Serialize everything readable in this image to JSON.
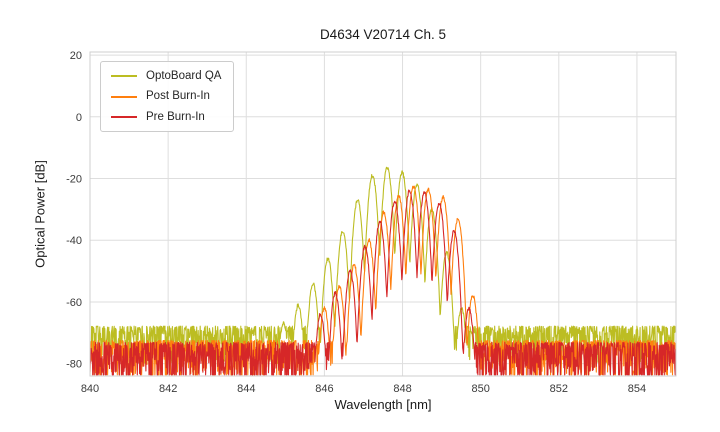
{
  "figure": {
    "title": "D4634 V20714 Ch. 5"
  },
  "chart_data": {
    "type": "line",
    "title": "D4634 V20714 Ch. 5",
    "xlabel": "Wavelength [nm]",
    "ylabel": "Optical Power [dB]",
    "xlim": [
      840,
      855
    ],
    "ylim": [
      -84,
      21
    ],
    "xticks": [
      840,
      842,
      844,
      846,
      848,
      850,
      852,
      854
    ],
    "yticks": [
      20,
      0,
      -20,
      -40,
      -60,
      -80
    ],
    "grid": true,
    "grid_color": "#dedede",
    "spine_color": "#cfcfcf",
    "legend_position": "upper-left",
    "mode_model": {
      "sample_step_nm": 0.01,
      "mode_half_spacing_nm": 0.19,
      "notch_depth_db": 28,
      "envelope_jitter_db": 1.2
    },
    "series": [
      {
        "name": "OptoBoard QA",
        "color": "#bcbd22",
        "seed": 101,
        "noise_floor_db": -71,
        "noise_spread_db": 9,
        "peak_wavelength_nm": 847.61,
        "peak_power_db": -16.5,
        "modes": [
          [
            844.95,
            -67
          ],
          [
            845.33,
            -61
          ],
          [
            845.71,
            -54
          ],
          [
            846.09,
            -46
          ],
          [
            846.47,
            -37
          ],
          [
            846.85,
            -27
          ],
          [
            847.23,
            -19
          ],
          [
            847.61,
            -16.5
          ],
          [
            847.99,
            -18
          ],
          [
            848.37,
            -22
          ],
          [
            848.75,
            -30
          ],
          [
            849.13,
            -44
          ],
          [
            849.51,
            -62
          ]
        ]
      },
      {
        "name": "Post Burn-In",
        "color": "#ff7f0e",
        "seed": 202,
        "noise_floor_db": -76,
        "noise_spread_db": 10,
        "peak_wavelength_nm": 848.28,
        "peak_power_db": -22.5,
        "modes": [
          [
            846.0,
            -62
          ],
          [
            846.38,
            -55
          ],
          [
            846.76,
            -48
          ],
          [
            847.14,
            -40
          ],
          [
            847.52,
            -31
          ],
          [
            847.9,
            -25.5
          ],
          [
            848.28,
            -22.5
          ],
          [
            848.66,
            -23.5
          ],
          [
            849.04,
            -26
          ],
          [
            849.42,
            -33
          ],
          [
            849.8,
            -58
          ]
        ]
      },
      {
        "name": "Pre Burn-In",
        "color": "#d62728",
        "seed": 303,
        "noise_floor_db": -77,
        "noise_spread_db": 11,
        "peak_wavelength_nm": 848.18,
        "peak_power_db": -24,
        "modes": [
          [
            845.9,
            -64
          ],
          [
            846.28,
            -57
          ],
          [
            846.66,
            -50
          ],
          [
            847.04,
            -42
          ],
          [
            847.42,
            -34
          ],
          [
            847.8,
            -27.5
          ],
          [
            848.18,
            -24
          ],
          [
            848.56,
            -24.5
          ],
          [
            848.94,
            -28
          ],
          [
            849.32,
            -37
          ],
          [
            849.7,
            -62
          ]
        ]
      }
    ]
  }
}
